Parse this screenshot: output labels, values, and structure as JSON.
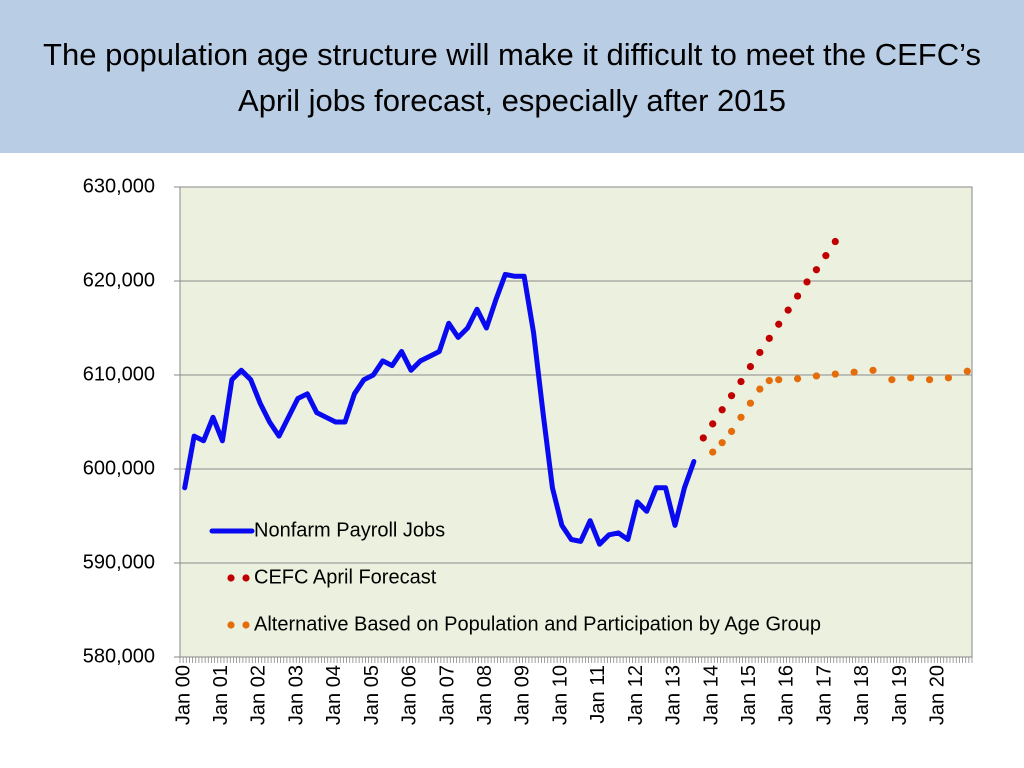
{
  "chart_data": {
    "type": "line",
    "title": "The population age structure will make it difficult to meet the CEFC’s April jobs forecast, especially after 2015",
    "categories": [
      "Jan 00",
      null,
      null,
      null,
      "Jan 01",
      null,
      null,
      null,
      "Jan 02",
      null,
      null,
      null,
      "Jan 03",
      null,
      null,
      null,
      "Jan 04",
      null,
      null,
      null,
      "Jan 05",
      null,
      null,
      null,
      "Jan 06",
      null,
      null,
      null,
      "Jan 07",
      null,
      null,
      null,
      "Jan 08",
      null,
      null,
      null,
      "Jan 09",
      null,
      null,
      null,
      "Jan 10",
      null,
      null,
      null,
      "Jan 11",
      null,
      null,
      null,
      "Jan 12",
      null,
      null,
      null,
      "Jan 13",
      null,
      null,
      null,
      "Jan 14",
      null,
      null,
      null,
      "Jan 15",
      null,
      null,
      null,
      "Jan 16",
      null,
      null,
      null,
      "Jan 17",
      null,
      null,
      null,
      "Jan 18",
      null,
      null,
      null,
      "Jan 19",
      null,
      null,
      null,
      "Jan 20",
      null,
      null,
      null
    ],
    "series": [
      {
        "name": "Nonfarm Payroll Jobs",
        "color": "#0a0af0",
        "style": "line",
        "values": [
          598000,
          603500,
          603000,
          605500,
          603000,
          609500,
          610500,
          609500,
          607000,
          605000,
          603500,
          605500,
          607500,
          608000,
          606000,
          605500,
          605000,
          605000,
          608000,
          609500,
          610000,
          611500,
          611000,
          612500,
          610500,
          611500,
          612000,
          612500,
          615500,
          614000,
          615000,
          617000,
          615000,
          618000,
          620700,
          620500,
          620500,
          614500,
          606000,
          598000,
          594000,
          592500,
          592300,
          594500,
          592000,
          593000,
          593200,
          592500,
          596500,
          595500,
          598000,
          598000,
          594000,
          598000,
          600800,
          null,
          null,
          null,
          null,
          null,
          null,
          null,
          null,
          null,
          null,
          null,
          null,
          null,
          null,
          null,
          null,
          null,
          null,
          null,
          null,
          null,
          null,
          null,
          null,
          null,
          null,
          null,
          null,
          null
        ]
      },
      {
        "name": "CEFC April Forecast",
        "color": "#c00000",
        "style": "dots",
        "values": [
          null,
          null,
          null,
          null,
          null,
          null,
          null,
          null,
          null,
          null,
          null,
          null,
          null,
          null,
          null,
          null,
          null,
          null,
          null,
          null,
          null,
          null,
          null,
          null,
          null,
          null,
          null,
          null,
          null,
          null,
          null,
          null,
          null,
          null,
          null,
          null,
          null,
          null,
          null,
          null,
          null,
          null,
          null,
          null,
          null,
          null,
          null,
          null,
          null,
          null,
          null,
          null,
          null,
          null,
          null,
          603300,
          604800,
          606300,
          607800,
          609300,
          610900,
          612400,
          613900,
          615400,
          616900,
          618400,
          619900,
          621200,
          622700,
          624200,
          null,
          null,
          null,
          null,
          null,
          null,
          null,
          null,
          null,
          null,
          null,
          null,
          null,
          null
        ]
      },
      {
        "name": "Alternative Based on Population and Participation by Age Group",
        "color": "#e46c0a",
        "style": "dots",
        "values": [
          null,
          null,
          null,
          null,
          null,
          null,
          null,
          null,
          null,
          null,
          null,
          null,
          null,
          null,
          null,
          null,
          null,
          null,
          null,
          null,
          null,
          null,
          null,
          null,
          null,
          null,
          null,
          null,
          null,
          null,
          null,
          null,
          null,
          null,
          null,
          null,
          null,
          null,
          null,
          null,
          null,
          null,
          null,
          null,
          null,
          null,
          null,
          null,
          null,
          null,
          null,
          null,
          null,
          null,
          null,
          null,
          601800,
          602800,
          604000,
          605500,
          607000,
          608500,
          609400,
          609500,
          null,
          609600,
          null,
          609900,
          null,
          610100,
          null,
          610300,
          null,
          610500,
          null,
          609500,
          null,
          609700,
          null,
          609500,
          null,
          609700,
          null,
          610400
        ]
      }
    ],
    "ylim": [
      580000,
      630000
    ],
    "yticks": [
      {
        "value": 580000,
        "label": "580,000"
      },
      {
        "value": 590000,
        "label": "590,000"
      },
      {
        "value": 600000,
        "label": "600,000"
      },
      {
        "value": 610000,
        "label": "610,000"
      },
      {
        "value": 620000,
        "label": "620,000"
      },
      {
        "value": 630000,
        "label": "630,000"
      }
    ],
    "grid": true,
    "legend": "lower left"
  }
}
